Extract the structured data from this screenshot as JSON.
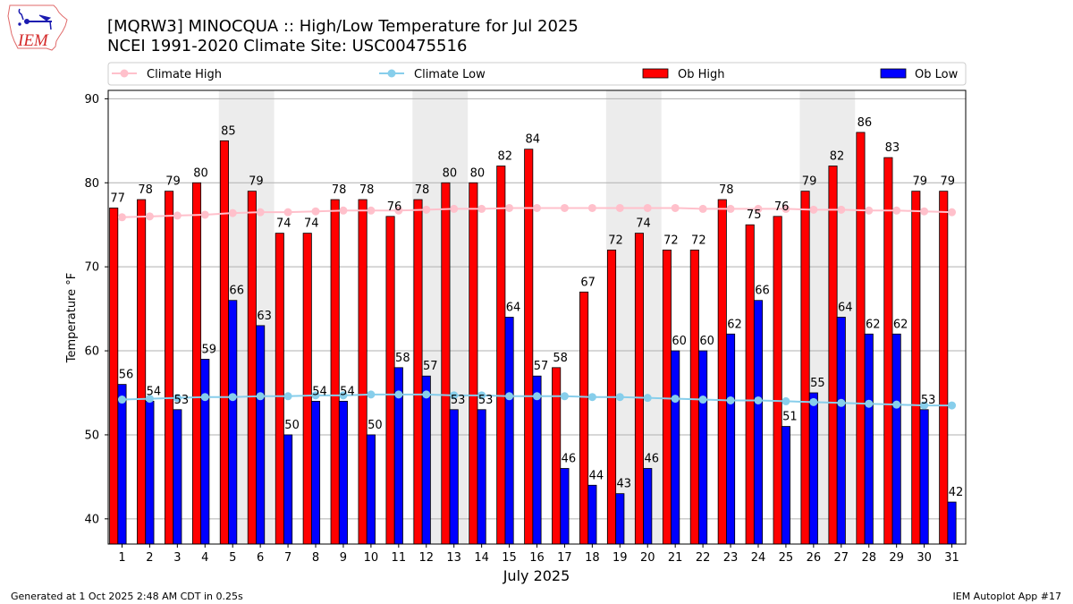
{
  "figure": {
    "logo_text": "IEM",
    "footer_left": "Generated at 1 Oct 2025 2:48 AM CDT in 0.25s",
    "footer_right": "IEM Autoplot App #17"
  },
  "chart_data": {
    "type": "bar",
    "title": "[MQRW3] MINOCQUA :: High/Low Temperature for Jul 2025 / NCEI 1991-2020 Climate Site: USC00475516",
    "title_lines": [
      "[MQRW3] MINOCQUA :: High/Low Temperature for Jul 2025",
      "NCEI 1991-2020 Climate Site: USC00475516"
    ],
    "xlabel": "July 2025",
    "ylabel": "Temperature °F",
    "xlim": [
      0.5,
      31.5
    ],
    "ylim": [
      37,
      91
    ],
    "yticks": [
      40,
      50,
      60,
      70,
      80,
      90
    ],
    "categories": [
      1,
      2,
      3,
      4,
      5,
      6,
      7,
      8,
      9,
      10,
      11,
      12,
      13,
      14,
      15,
      16,
      17,
      18,
      19,
      20,
      21,
      22,
      23,
      24,
      25,
      26,
      27,
      28,
      29,
      30,
      31
    ],
    "grid": "horizontal",
    "legend_position": "top (above plot, single row)",
    "weekend_shading": [
      [
        5,
        6
      ],
      [
        12,
        13
      ],
      [
        19,
        20
      ],
      [
        26,
        27
      ]
    ],
    "shading_color": "#ececec",
    "legend": [
      {
        "label": "Climate High",
        "series": "Climate High",
        "marker": "line-dot"
      },
      {
        "label": "Climate Low",
        "series": "Climate Low",
        "marker": "line-dot"
      },
      {
        "label": "Ob High",
        "series": "Ob High",
        "marker": "patch"
      },
      {
        "label": "Ob Low",
        "series": "Ob Low",
        "marker": "patch"
      }
    ],
    "series": [
      {
        "name": "Ob High",
        "kind": "bar",
        "color": "#ff0000",
        "values": [
          77,
          78,
          79,
          80,
          85,
          79,
          74,
          74,
          78,
          78,
          76,
          78,
          80,
          80,
          82,
          84,
          58,
          67,
          72,
          74,
          72,
          72,
          78,
          75,
          76,
          79,
          82,
          86,
          83,
          79,
          79
        ]
      },
      {
        "name": "Ob Low",
        "kind": "bar",
        "color": "#0000ff",
        "values": [
          56,
          54,
          53,
          59,
          66,
          63,
          50,
          54,
          54,
          50,
          58,
          57,
          53,
          53,
          64,
          57,
          46,
          44,
          43,
          46,
          60,
          60,
          62,
          66,
          51,
          55,
          64,
          62,
          62,
          53,
          42
        ]
      },
      {
        "name": "Climate High",
        "kind": "line",
        "color": "#ffc0cb",
        "values": [
          75.9,
          76.0,
          76.1,
          76.2,
          76.4,
          76.5,
          76.5,
          76.6,
          76.7,
          76.7,
          76.7,
          76.8,
          76.9,
          76.9,
          77.0,
          77.0,
          77.0,
          77.0,
          77.0,
          77.0,
          77.0,
          76.9,
          76.9,
          76.9,
          76.9,
          76.8,
          76.8,
          76.7,
          76.7,
          76.6,
          76.5
        ]
      },
      {
        "name": "Climate Low",
        "kind": "line",
        "color": "#87ceeb",
        "values": [
          54.2,
          54.3,
          54.4,
          54.5,
          54.5,
          54.6,
          54.6,
          54.7,
          54.7,
          54.8,
          54.8,
          54.8,
          54.7,
          54.7,
          54.6,
          54.6,
          54.6,
          54.5,
          54.5,
          54.4,
          54.3,
          54.2,
          54.1,
          54.1,
          54.0,
          53.9,
          53.8,
          53.7,
          53.6,
          53.5,
          53.5
        ]
      }
    ]
  }
}
